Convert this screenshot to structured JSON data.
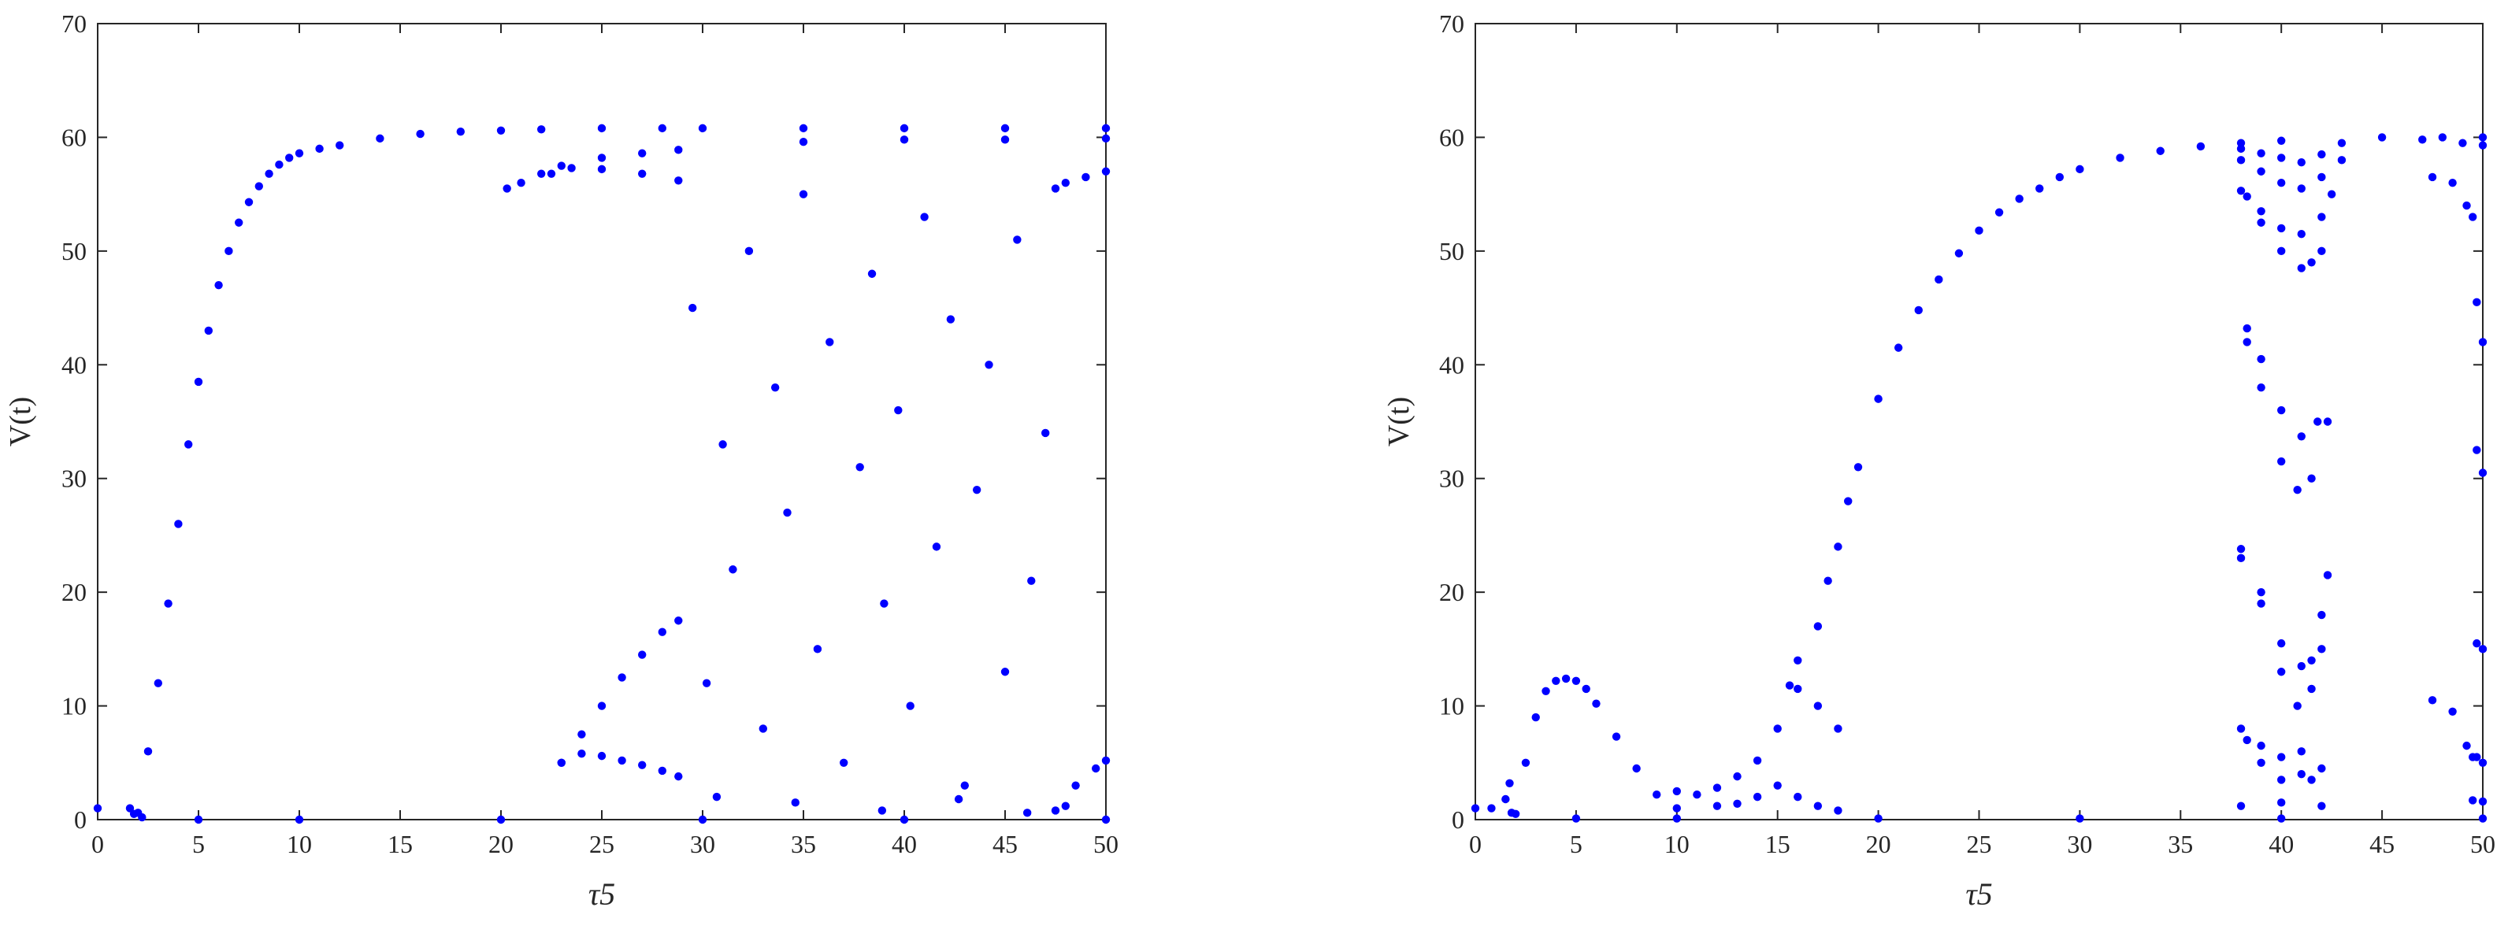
{
  "chart_data": [
    {
      "type": "scatter",
      "xlabel": "τ5",
      "ylabel": "V(t)",
      "xlim": [
        0,
        50
      ],
      "ylim": [
        0,
        70
      ],
      "xticks": [
        0,
        5,
        10,
        15,
        20,
        25,
        30,
        35,
        40,
        45,
        50
      ],
      "yticks": [
        0,
        10,
        20,
        30,
        40,
        50,
        60,
        70
      ],
      "grid": false,
      "marker_color": "#0000ff",
      "series": [
        {
          "points": [
            [
              0,
              1.0
            ],
            [
              1.6,
              1.0
            ],
            [
              1.8,
              0.5
            ],
            [
              2.2,
              0.2
            ],
            [
              5,
              0
            ],
            [
              10,
              0
            ],
            [
              20,
              0
            ],
            [
              30,
              0
            ],
            [
              40,
              0
            ],
            [
              50,
              0
            ],
            [
              2.0,
              0.6
            ],
            [
              2.5,
              6
            ],
            [
              3,
              12
            ],
            [
              3.5,
              19
            ],
            [
              4,
              26
            ],
            [
              4.5,
              33
            ],
            [
              5,
              38.5
            ],
            [
              5.5,
              43
            ],
            [
              6,
              47
            ],
            [
              6.5,
              50
            ],
            [
              7,
              52.5
            ],
            [
              7.5,
              54.3
            ],
            [
              8,
              55.7
            ],
            [
              8.5,
              56.8
            ],
            [
              9,
              57.6
            ],
            [
              9.5,
              58.2
            ],
            [
              10,
              58.6
            ],
            [
              11,
              59.0
            ],
            [
              12,
              59.3
            ],
            [
              14,
              59.9
            ],
            [
              16,
              60.3
            ],
            [
              18,
              60.5
            ],
            [
              20,
              60.6
            ],
            [
              22,
              60.7
            ],
            [
              25,
              60.8
            ],
            [
              28,
              60.8
            ],
            [
              30,
              60.8
            ],
            [
              35,
              60.8
            ],
            [
              40,
              60.8
            ],
            [
              45,
              60.8
            ],
            [
              50,
              60.8
            ],
            [
              20.3,
              55.5
            ],
            [
              21,
              56
            ],
            [
              22,
              56.8
            ],
            [
              23,
              57.5
            ],
            [
              25,
              58.2
            ],
            [
              27,
              58.6
            ],
            [
              28.8,
              58.9
            ],
            [
              35,
              59.6
            ],
            [
              40,
              59.8
            ],
            [
              45,
              59.8
            ],
            [
              50,
              59.9
            ],
            [
              22.5,
              56.8
            ],
            [
              23.5,
              57.3
            ],
            [
              25,
              57.2
            ],
            [
              27,
              56.8
            ],
            [
              28.8,
              56.2
            ],
            [
              47.5,
              55.5
            ],
            [
              48,
              56
            ],
            [
              49,
              56.5
            ],
            [
              50,
              57
            ],
            [
              47.5,
              0.8
            ],
            [
              48,
              1.2
            ],
            [
              48.5,
              3
            ],
            [
              49.5,
              4.5
            ],
            [
              50,
              5.2
            ],
            [
              23,
              5
            ],
            [
              24,
              7.5
            ],
            [
              25,
              10
            ],
            [
              26,
              12.5
            ],
            [
              27,
              14.5
            ],
            [
              28,
              16.5
            ],
            [
              28.8,
              17.5
            ],
            [
              23,
              5
            ],
            [
              24,
              5.8
            ],
            [
              25,
              5.6
            ],
            [
              26,
              5.2
            ],
            [
              27,
              4.8
            ],
            [
              28,
              4.3
            ],
            [
              28.8,
              3.8
            ],
            [
              29.5,
              45
            ],
            [
              30.2,
              12
            ],
            [
              31,
              33
            ],
            [
              31.5,
              22
            ],
            [
              32.3,
              50
            ],
            [
              33,
              8
            ],
            [
              33.6,
              38
            ],
            [
              34.2,
              27
            ],
            [
              35,
              55
            ],
            [
              35.7,
              15
            ],
            [
              36.3,
              42
            ],
            [
              37,
              5
            ],
            [
              37.8,
              31
            ],
            [
              38.4,
              48
            ],
            [
              39,
              19
            ],
            [
              39.7,
              36
            ],
            [
              40.3,
              10
            ],
            [
              41,
              53
            ],
            [
              41.6,
              24
            ],
            [
              42.3,
              44
            ],
            [
              43,
              3
            ],
            [
              43.6,
              29
            ],
            [
              44.2,
              40
            ],
            [
              45,
              13
            ],
            [
              45.6,
              51
            ],
            [
              46.3,
              21
            ],
            [
              47,
              34
            ],
            [
              30.7,
              2
            ],
            [
              34.6,
              1.5
            ],
            [
              38.9,
              0.8
            ],
            [
              42.7,
              1.8
            ],
            [
              46.1,
              0.6
            ]
          ]
        }
      ]
    },
    {
      "type": "scatter",
      "xlabel": "τ5",
      "ylabel": "V(t)",
      "xlim": [
        0,
        50
      ],
      "ylim": [
        0,
        70
      ],
      "xticks": [
        0,
        5,
        10,
        15,
        20,
        25,
        30,
        35,
        40,
        45,
        50
      ],
      "yticks": [
        0,
        10,
        20,
        30,
        40,
        50,
        60,
        70
      ],
      "grid": false,
      "marker_color": "#0000ff",
      "series": [
        {
          "points": [
            [
              0,
              1.0
            ],
            [
              0.8,
              1.0
            ],
            [
              1.5,
              1.8
            ],
            [
              1.7,
              3.2
            ],
            [
              2.0,
              0.5
            ],
            [
              5,
              0.1
            ],
            [
              10,
              0.1
            ],
            [
              20,
              0.1
            ],
            [
              30,
              0.1
            ],
            [
              40,
              0.1
            ],
            [
              50,
              0.1
            ],
            [
              1.8,
              0.6
            ],
            [
              2.5,
              5
            ],
            [
              3,
              9
            ],
            [
              3.5,
              11.3
            ],
            [
              4,
              12.2
            ],
            [
              4.5,
              12.4
            ],
            [
              5,
              12.2
            ],
            [
              5.5,
              11.5
            ],
            [
              6,
              10.2
            ],
            [
              7,
              7.3
            ],
            [
              8,
              4.5
            ],
            [
              9,
              2.2
            ],
            [
              10,
              1
            ],
            [
              10,
              2.5
            ],
            [
              11,
              2.2
            ],
            [
              12,
              2.8
            ],
            [
              13,
              3.8
            ],
            [
              14,
              5.2
            ],
            [
              15,
              8
            ],
            [
              15.6,
              11.8
            ],
            [
              16,
              11.5
            ],
            [
              17,
              10
            ],
            [
              18,
              8
            ],
            [
              12,
              1.2
            ],
            [
              13,
              1.4
            ],
            [
              14,
              2
            ],
            [
              15,
              3
            ],
            [
              16,
              2
            ],
            [
              17,
              1.2
            ],
            [
              18,
              0.8
            ],
            [
              16,
              14
            ],
            [
              17,
              17
            ],
            [
              17.5,
              21
            ],
            [
              18,
              24
            ],
            [
              18.5,
              28
            ],
            [
              19,
              31
            ],
            [
              20,
              37
            ],
            [
              21,
              41.5
            ],
            [
              22,
              44.8
            ],
            [
              23,
              47.5
            ],
            [
              24,
              49.8
            ],
            [
              25,
              51.8
            ],
            [
              26,
              53.4
            ],
            [
              27,
              54.6
            ],
            [
              28,
              55.5
            ],
            [
              29,
              56.5
            ],
            [
              30,
              57.2
            ],
            [
              32,
              58.2
            ],
            [
              34,
              58.8
            ],
            [
              36,
              59.2
            ],
            [
              38,
              59.5
            ],
            [
              40,
              59.7
            ],
            [
              45,
              60
            ],
            [
              50,
              60
            ],
            [
              38,
              59
            ],
            [
              39,
              58.6
            ],
            [
              40,
              58.2
            ],
            [
              41,
              57.8
            ],
            [
              42,
              58.5
            ],
            [
              43,
              59.5
            ],
            [
              38,
              58
            ],
            [
              39,
              57
            ],
            [
              40,
              56
            ],
            [
              41,
              55.5
            ],
            [
              42,
              56.5
            ],
            [
              43,
              58
            ],
            [
              38,
              55.3
            ],
            [
              39,
              53.5
            ],
            [
              40,
              52
            ],
            [
              41,
              51.5
            ],
            [
              42,
              53
            ],
            [
              42.5,
              55
            ],
            [
              38.3,
              54.8
            ],
            [
              39,
              52.5
            ],
            [
              40,
              50
            ],
            [
              41,
              48.5
            ],
            [
              41.5,
              49
            ],
            [
              42,
              50
            ],
            [
              38.3,
              43.2
            ],
            [
              39,
              40.5
            ],
            [
              40,
              36
            ],
            [
              41,
              33.7
            ],
            [
              41.8,
              35
            ],
            [
              38.3,
              42
            ],
            [
              39,
              38
            ],
            [
              40,
              31.5
            ],
            [
              40.8,
              29
            ],
            [
              41.5,
              30
            ],
            [
              42.3,
              35
            ],
            [
              38,
              23.8
            ],
            [
              39,
              20
            ],
            [
              40,
              15.5
            ],
            [
              41,
              13.5
            ],
            [
              41.5,
              14
            ],
            [
              42,
              18
            ],
            [
              42.3,
              21.5
            ],
            [
              38,
              23
            ],
            [
              39,
              19
            ],
            [
              40,
              13
            ],
            [
              40.8,
              10
            ],
            [
              41.5,
              11.5
            ],
            [
              42,
              15
            ],
            [
              38,
              8
            ],
            [
              39,
              6.5
            ],
            [
              40,
              5.5
            ],
            [
              41,
              6
            ],
            [
              42,
              4.5
            ],
            [
              38.3,
              7
            ],
            [
              39,
              5
            ],
            [
              40,
              3.5
            ],
            [
              41,
              4
            ],
            [
              41.5,
              3.5
            ],
            [
              38,
              1.2
            ],
            [
              40,
              1.5
            ],
            [
              42,
              1.2
            ],
            [
              47.5,
              56.5
            ],
            [
              48.5,
              56
            ],
            [
              49.2,
              54
            ],
            [
              49.5,
              53
            ],
            [
              49.7,
              45.5
            ],
            [
              50,
              42
            ],
            [
              49.7,
              32.5
            ],
            [
              50,
              30.5
            ],
            [
              47.5,
              10.5
            ],
            [
              48.5,
              9.5
            ],
            [
              49.2,
              6.5
            ],
            [
              49.5,
              5.5
            ],
            [
              49.7,
              15.5
            ],
            [
              50,
              15
            ],
            [
              49.7,
              5.5
            ],
            [
              50,
              5
            ],
            [
              49.5,
              1.7
            ],
            [
              50,
              1.6
            ],
            [
              47,
              59.8
            ],
            [
              48,
              60
            ],
            [
              49,
              59.5
            ],
            [
              50,
              59.3
            ]
          ]
        }
      ]
    }
  ]
}
